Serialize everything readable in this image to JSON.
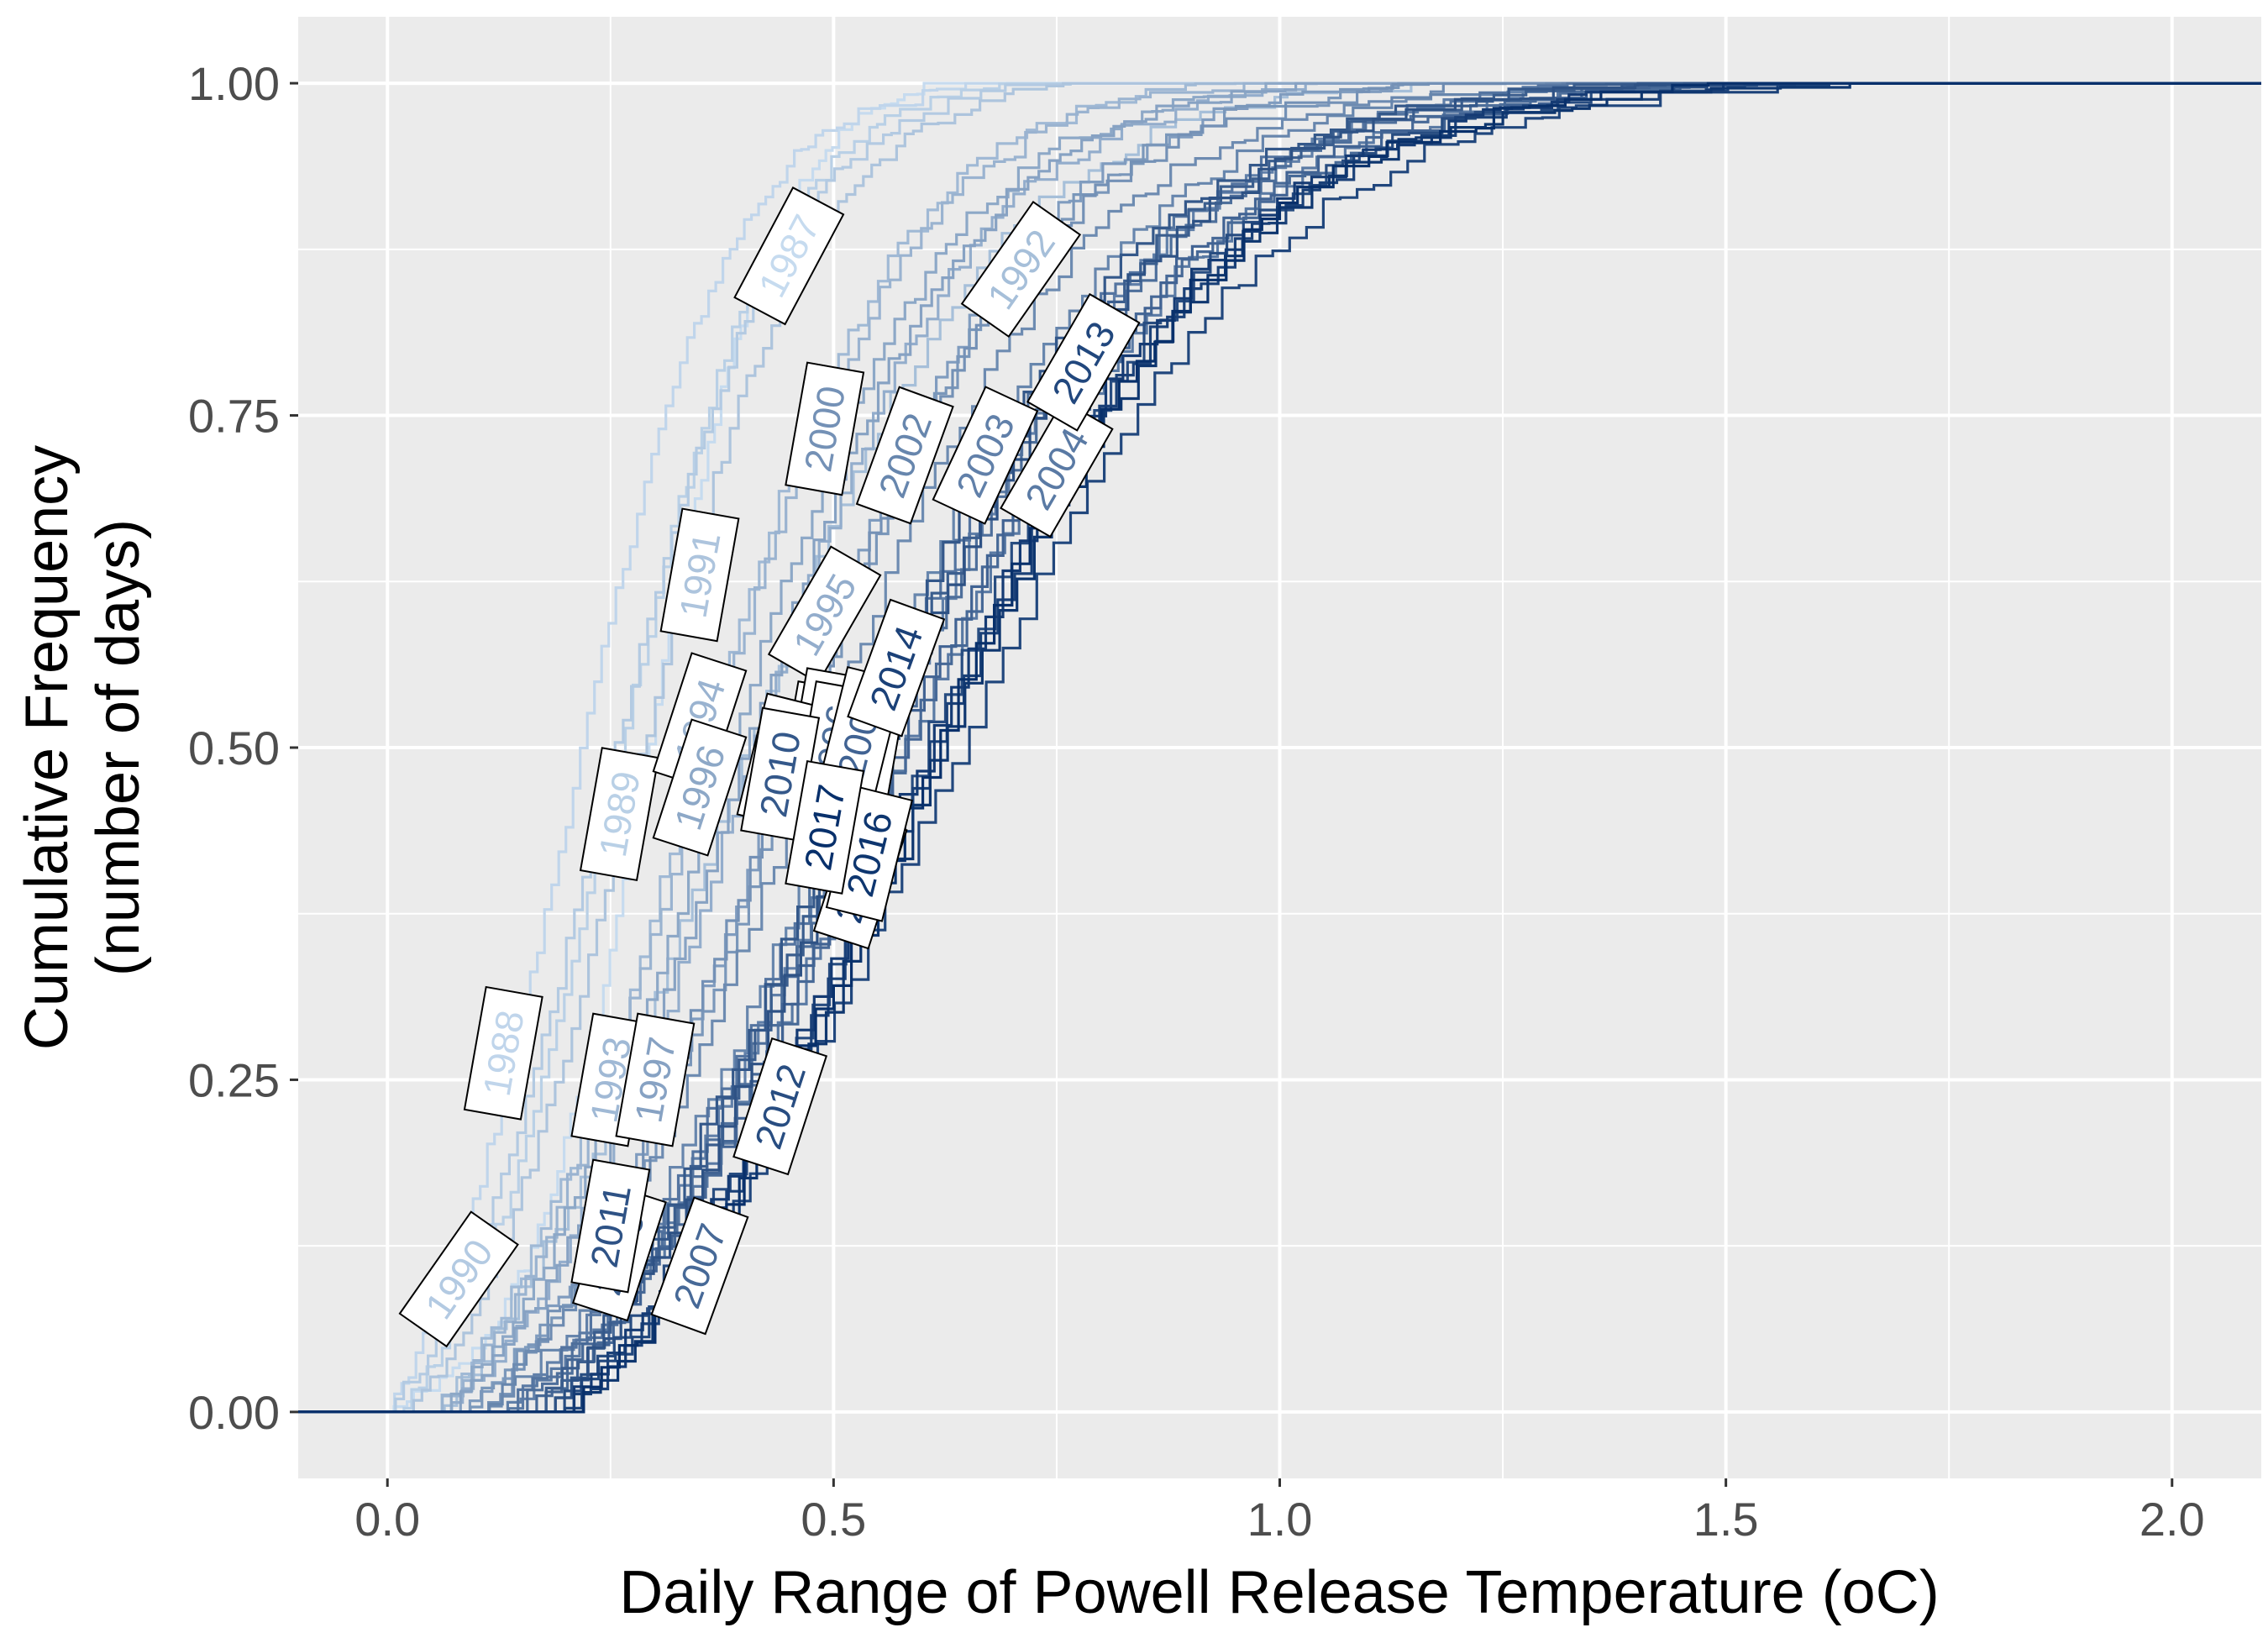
{
  "chart_data": {
    "type": "line",
    "subtype": "step-ecdf",
    "title": "",
    "xlabel": "Daily Range of Powell Release Temperature (oC)",
    "ylabel_line1": "Cumulative Frequency",
    "ylabel_line2": "(number of days)",
    "xlim": [
      -0.1,
      2.1
    ],
    "ylim": [
      -0.05,
      1.05
    ],
    "x_ticks": [
      0.0,
      0.5,
      1.0,
      1.5,
      2.0
    ],
    "x_tick_labels": [
      "0.0",
      "0.5",
      "1.0",
      "1.5",
      "2.0"
    ],
    "y_ticks": [
      0.0,
      0.25,
      0.5,
      0.75,
      1.0
    ],
    "y_tick_labels": [
      "0.00",
      "0.25",
      "0.50",
      "0.75",
      "1.00"
    ],
    "grid": true,
    "panel_background": "#ebebeb",
    "grid_color": "#ffffff",
    "color_scale": {
      "light": "#c6dbef",
      "dark": "#08306b"
    },
    "series": [
      {
        "name": "1987",
        "x_min": 0.0,
        "median": 0.29,
        "spread": 0.07,
        "x_max": 0.66,
        "label": {
          "x": 0.45,
          "y": 0.87,
          "angle": -62
        }
      },
      {
        "name": "1988",
        "x_min": 0.0,
        "median": 0.2,
        "spread": 0.09,
        "x_max": 0.72,
        "label": {
          "x": 0.13,
          "y": 0.27,
          "angle": -80
        }
      },
      {
        "name": "1989",
        "x_min": 0.01,
        "median": 0.25,
        "spread": 0.09,
        "x_max": 0.78,
        "label": {
          "x": 0.26,
          "y": 0.45,
          "angle": -80
        }
      },
      {
        "name": "1990",
        "x_min": 0.0,
        "median": 0.24,
        "spread": 0.1,
        "x_max": 0.82,
        "label": {
          "x": 0.08,
          "y": 0.1,
          "angle": -55
        }
      },
      {
        "name": "1991",
        "x_min": 0.02,
        "median": 0.27,
        "spread": 0.1,
        "x_max": 0.86,
        "label": {
          "x": 0.35,
          "y": 0.63,
          "angle": -80
        }
      },
      {
        "name": "1992",
        "x_min": 0.05,
        "median": 0.37,
        "spread": 0.15,
        "x_max": 1.3,
        "label": {
          "x": 0.71,
          "y": 0.86,
          "angle": -55
        }
      },
      {
        "name": "1993",
        "x_min": 0.05,
        "median": 0.33,
        "spread": 0.12,
        "x_max": 1.05,
        "label": {
          "x": 0.25,
          "y": 0.25,
          "angle": -80
        }
      },
      {
        "name": "1994",
        "x_min": 0.05,
        "median": 0.34,
        "spread": 0.12,
        "x_max": 1.1,
        "label": {
          "x": 0.35,
          "y": 0.52,
          "angle": -72
        }
      },
      {
        "name": "1995",
        "x_min": 0.06,
        "median": 0.39,
        "spread": 0.13,
        "x_max": 1.15,
        "label": {
          "x": 0.49,
          "y": 0.6,
          "angle": -60
        }
      },
      {
        "name": "1996",
        "x_min": 0.06,
        "median": 0.36,
        "spread": 0.13,
        "x_max": 1.1,
        "label": {
          "x": 0.35,
          "y": 0.47,
          "angle": -72
        }
      },
      {
        "name": "1997",
        "x_min": 0.07,
        "median": 0.38,
        "spread": 0.13,
        "x_max": 1.15,
        "label": {
          "x": 0.3,
          "y": 0.25,
          "angle": -80
        }
      },
      {
        "name": "1998",
        "x_min": 0.08,
        "median": 0.43,
        "spread": 0.14,
        "x_max": 1.2,
        "label": {
          "x": 0.48,
          "y": 0.5,
          "angle": -80
        }
      },
      {
        "name": "1999",
        "x_min": 0.08,
        "median": 0.44,
        "spread": 0.14,
        "x_max": 1.25,
        "label": {
          "x": 0.49,
          "y": 0.51,
          "angle": -80
        }
      },
      {
        "name": "2000",
        "x_min": 0.1,
        "median": 0.42,
        "spread": 0.15,
        "x_max": 1.3,
        "label": {
          "x": 0.49,
          "y": 0.74,
          "angle": -80
        }
      },
      {
        "name": "2001",
        "x_min": 0.1,
        "median": 0.45,
        "spread": 0.16,
        "x_max": 1.35,
        "label": {
          "x": 0.44,
          "y": 0.49,
          "angle": -76
        }
      },
      {
        "name": "2002",
        "x_min": 0.1,
        "median": 0.5,
        "spread": 0.16,
        "x_max": 1.4,
        "label": {
          "x": 0.58,
          "y": 0.72,
          "angle": -70
        }
      },
      {
        "name": "2003",
        "x_min": 0.12,
        "median": 0.52,
        "spread": 0.17,
        "x_max": 1.45,
        "label": {
          "x": 0.67,
          "y": 0.72,
          "angle": -65
        }
      },
      {
        "name": "2004",
        "x_min": 0.12,
        "median": 0.55,
        "spread": 0.18,
        "x_max": 1.55,
        "label": {
          "x": 0.75,
          "y": 0.71,
          "angle": -60
        }
      },
      {
        "name": "2005",
        "x_min": 0.13,
        "median": 0.5,
        "spread": 0.17,
        "x_max": 1.6,
        "label": {
          "x": 0.53,
          "y": 0.47,
          "angle": -80
        }
      },
      {
        "name": "2006",
        "x_min": 0.14,
        "median": 0.52,
        "spread": 0.17,
        "x_max": 1.65,
        "label": {
          "x": 0.5,
          "y": 0.5,
          "angle": -80
        }
      },
      {
        "name": "2007",
        "x_min": 0.15,
        "median": 0.54,
        "spread": 0.18,
        "x_max": 1.7,
        "label": {
          "x": 0.35,
          "y": 0.11,
          "angle": -70
        }
      },
      {
        "name": "2008",
        "x_min": 0.16,
        "median": 0.53,
        "spread": 0.18,
        "x_max": 1.75,
        "label": {
          "x": 0.53,
          "y": 0.51,
          "angle": -76
        }
      },
      {
        "name": "2009",
        "x_min": 0.16,
        "median": 0.5,
        "spread": 0.17,
        "x_max": 1.78,
        "label": {
          "x": 0.26,
          "y": 0.12,
          "angle": -72
        }
      },
      {
        "name": "2010",
        "x_min": 0.17,
        "median": 0.48,
        "spread": 0.17,
        "x_max": 1.8,
        "label": {
          "x": 0.44,
          "y": 0.48,
          "angle": -80
        }
      },
      {
        "name": "2011",
        "x_min": 0.17,
        "median": 0.51,
        "spread": 0.17,
        "x_max": 1.82,
        "label": {
          "x": 0.25,
          "y": 0.14,
          "angle": -80
        }
      },
      {
        "name": "2012",
        "x_min": 0.18,
        "median": 0.56,
        "spread": 0.18,
        "x_max": 1.85,
        "label": {
          "x": 0.44,
          "y": 0.23,
          "angle": -72
        }
      },
      {
        "name": "2013",
        "x_min": 0.18,
        "median": 0.6,
        "spread": 0.19,
        "x_max": 1.88,
        "label": {
          "x": 0.78,
          "y": 0.79,
          "angle": -60
        }
      },
      {
        "name": "2014",
        "x_min": 0.19,
        "median": 0.57,
        "spread": 0.18,
        "x_max": 1.9,
        "label": {
          "x": 0.57,
          "y": 0.56,
          "angle": -70
        }
      },
      {
        "name": "2015",
        "x_min": 0.19,
        "median": 0.56,
        "spread": 0.18,
        "x_max": 1.92,
        "label": {
          "x": 0.53,
          "y": 0.4,
          "angle": -72
        }
      },
      {
        "name": "2016",
        "x_min": 0.2,
        "median": 0.58,
        "spread": 0.18,
        "x_max": 1.95,
        "label": {
          "x": 0.54,
          "y": 0.42,
          "angle": -76
        }
      },
      {
        "name": "2017",
        "x_min": 0.2,
        "median": 0.57,
        "spread": 0.18,
        "x_max": 2.0,
        "label": {
          "x": 0.49,
          "y": 0.44,
          "angle": -80
        }
      }
    ]
  }
}
